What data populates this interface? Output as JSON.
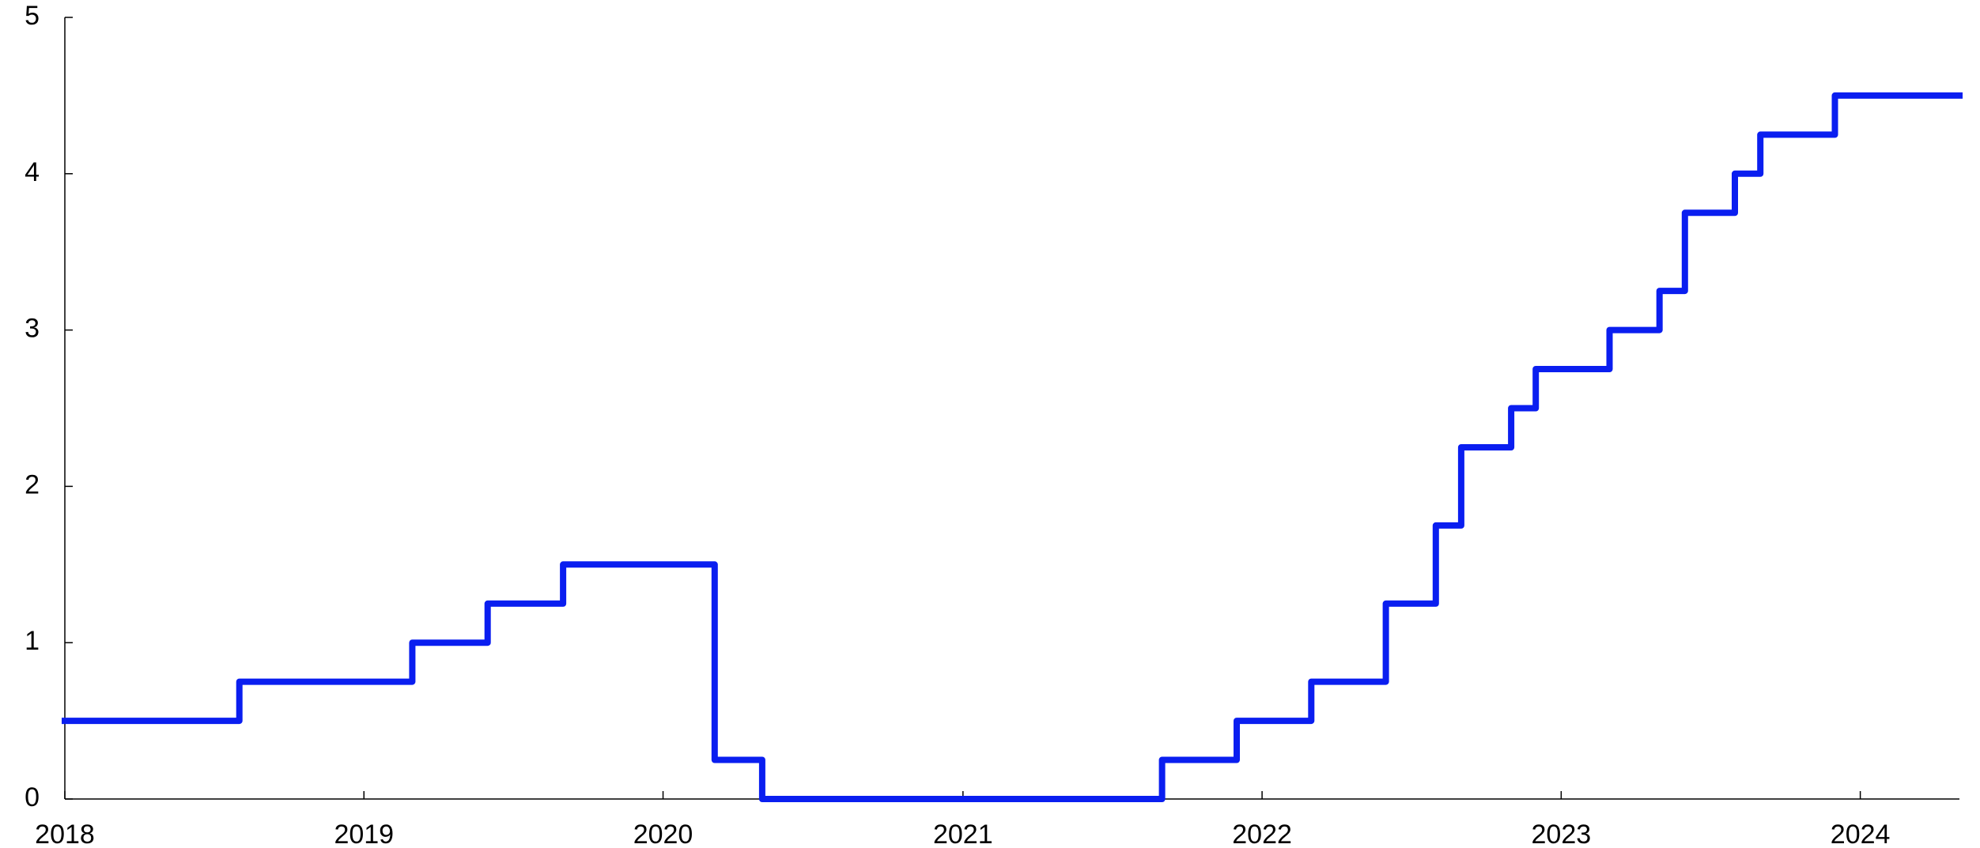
{
  "chart_data": {
    "type": "line",
    "interpolation": "step-after",
    "title": "",
    "xlabel": "",
    "ylabel": "",
    "xlim": [
      "2018-01-01",
      "2024-05-01"
    ],
    "ylim": [
      0,
      5
    ],
    "x_ticks": [
      "2018",
      "2019",
      "2020",
      "2021",
      "2022",
      "2023",
      "2024"
    ],
    "y_ticks": [
      "0",
      "1",
      "2",
      "3",
      "4",
      "5"
    ],
    "grid": false,
    "legend": "none",
    "series": [
      {
        "color": "#0a1ef0",
        "points": [
          {
            "x": "2018-01-01",
            "y": 0.5
          },
          {
            "x": "2018-08-02",
            "y": 0.75
          },
          {
            "x": "2019-03-01",
            "y": 1.0
          },
          {
            "x": "2019-06-01",
            "y": 1.25
          },
          {
            "x": "2019-09-01",
            "y": 1.5
          },
          {
            "x": "2020-03-04",
            "y": 0.25
          },
          {
            "x": "2020-05-01",
            "y": 0.0
          },
          {
            "x": "2021-09-01",
            "y": 0.25
          },
          {
            "x": "2021-12-01",
            "y": 0.5
          },
          {
            "x": "2022-03-02",
            "y": 0.75
          },
          {
            "x": "2022-06-01",
            "y": 1.25
          },
          {
            "x": "2022-08-01",
            "y": 1.75
          },
          {
            "x": "2022-09-01",
            "y": 2.25
          },
          {
            "x": "2022-11-01",
            "y": 2.5
          },
          {
            "x": "2022-12-01",
            "y": 2.75
          },
          {
            "x": "2023-03-01",
            "y": 3.0
          },
          {
            "x": "2023-05-01",
            "y": 3.25
          },
          {
            "x": "2023-06-01",
            "y": 3.75
          },
          {
            "x": "2023-08-01",
            "y": 4.0
          },
          {
            "x": "2023-09-01",
            "y": 4.25
          },
          {
            "x": "2023-12-01",
            "y": 4.5
          },
          {
            "x": "2024-05-01",
            "y": 4.5
          }
        ]
      }
    ]
  }
}
